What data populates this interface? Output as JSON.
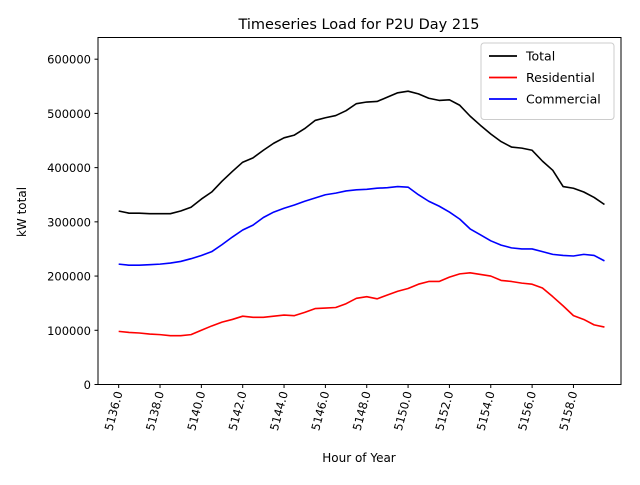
{
  "chart_data": {
    "type": "line",
    "title": "Timeseries Load for P2U   Day 215",
    "xlabel": "Hour of Year",
    "ylabel": "kW total",
    "xlim": [
      5135.0,
      5160.3
    ],
    "ylim": [
      0,
      640000
    ],
    "xticks": [
      5136,
      5138,
      5140,
      5142,
      5144,
      5146,
      5148,
      5150,
      5152,
      5154,
      5156,
      5158
    ],
    "xtick_labels": [
      "5136.0",
      "5138.0",
      "5140.0",
      "5142.0",
      "5144.0",
      "5146.0",
      "5148.0",
      "5150.0",
      "5152.0",
      "5154.0",
      "5156.0",
      "5158.0"
    ],
    "yticks": [
      0,
      100000,
      200000,
      300000,
      400000,
      500000,
      600000
    ],
    "ytick_labels": [
      "0",
      "100000",
      "200000",
      "300000",
      "400000",
      "500000",
      "600000"
    ],
    "legend_position": "top-right",
    "x": [
      5136.0,
      5136.5,
      5137.0,
      5137.5,
      5138.0,
      5138.5,
      5139.0,
      5139.5,
      5140.0,
      5140.5,
      5141.0,
      5141.5,
      5142.0,
      5142.5,
      5143.0,
      5143.5,
      5144.0,
      5144.5,
      5145.0,
      5145.5,
      5146.0,
      5146.5,
      5147.0,
      5147.5,
      5148.0,
      5148.5,
      5149.0,
      5149.5,
      5150.0,
      5150.5,
      5151.0,
      5151.5,
      5152.0,
      5152.5,
      5153.0,
      5153.5,
      5154.0,
      5154.5,
      5155.0,
      5155.5,
      5156.0,
      5156.5,
      5157.0,
      5157.5,
      5158.0,
      5158.5,
      5159.0,
      5159.5
    ],
    "series": [
      {
        "name": "Total",
        "color": "#000000",
        "values": [
          320000,
          316000,
          316000,
          315000,
          315000,
          315000,
          320000,
          327000,
          342000,
          355000,
          375000,
          393000,
          410000,
          418000,
          432000,
          445000,
          455000,
          460000,
          472000,
          487000,
          492000,
          496000,
          505000,
          518000,
          521000,
          522000,
          530000,
          538000,
          541000,
          536000,
          528000,
          524000,
          525000,
          515000,
          495000,
          478000,
          462000,
          448000,
          438000,
          436000,
          432000,
          412000,
          395000,
          365000,
          362000,
          355000,
          345000,
          332000
        ]
      },
      {
        "name": "Residential",
        "color": "#ff0000",
        "values": [
          98000,
          96000,
          95000,
          93000,
          92000,
          90000,
          90000,
          92000,
          100000,
          108000,
          115000,
          120000,
          126000,
          124000,
          124000,
          126000,
          128000,
          127000,
          133000,
          140000,
          141000,
          142000,
          149000,
          159000,
          162000,
          158000,
          165000,
          172000,
          177000,
          185000,
          190000,
          190000,
          198000,
          204000,
          206000,
          203000,
          200000,
          192000,
          190000,
          187000,
          185000,
          178000,
          162000,
          145000,
          127000,
          120000,
          110000,
          106000
        ]
      },
      {
        "name": "Commercial",
        "color": "#0000ff",
        "values": [
          222000,
          220000,
          220000,
          221000,
          222000,
          224000,
          227000,
          232000,
          238000,
          245000,
          258000,
          272000,
          285000,
          294000,
          308000,
          318000,
          325000,
          331000,
          338000,
          344000,
          350000,
          353000,
          357000,
          359000,
          360000,
          362000,
          363000,
          365000,
          364000,
          350000,
          338000,
          329000,
          318000,
          305000,
          287000,
          276000,
          265000,
          257000,
          252000,
          250000,
          250000,
          245000,
          240000,
          238000,
          237000,
          240000,
          238000,
          228000
        ]
      }
    ]
  }
}
